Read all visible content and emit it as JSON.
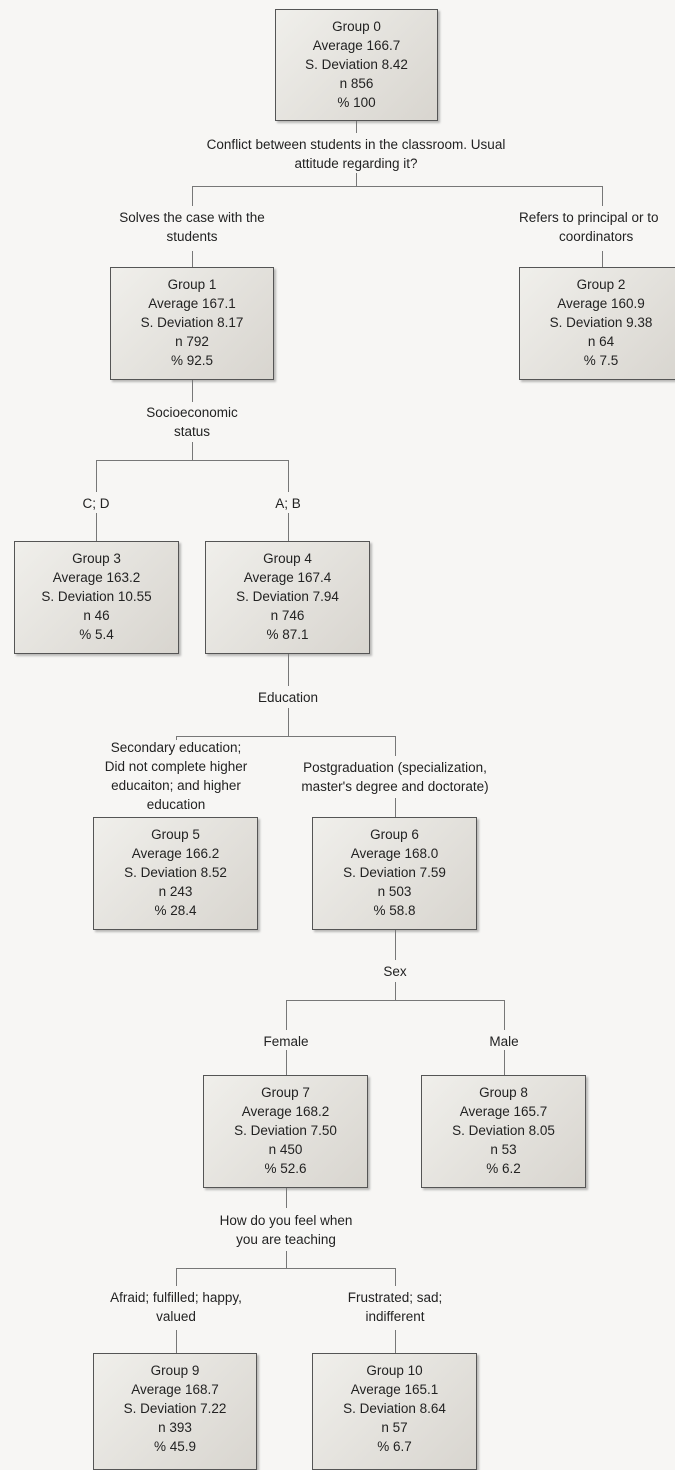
{
  "nodes": [
    {
      "group": "Group  0",
      "average": "Average  166.7",
      "sd": "S. Deviation  8.42",
      "n": "n  856",
      "pct": "% 100"
    },
    {
      "group": "Group  1",
      "average": "Average  167.1",
      "sd": "S. Deviation  8.17",
      "n": "n  792",
      "pct": "% 92.5"
    },
    {
      "group": "Group  2",
      "average": "Average  160.9",
      "sd": "S. Deviation  9.38",
      "n": "n  64",
      "pct": "% 7.5"
    },
    {
      "group": "Group  3",
      "average": "Average  163.2",
      "sd": "S. Deviation  10.55",
      "n": "n  46",
      "pct": "% 5.4"
    },
    {
      "group": "Group  4",
      "average": "Average  167.4",
      "sd": "S. Deviation  7.94",
      "n": "n  746",
      "pct": "% 87.1"
    },
    {
      "group": "Group  5",
      "average": "Average  166.2",
      "sd": "S. Deviation  8.52",
      "n": "n  243",
      "pct": "% 28.4"
    },
    {
      "group": "Group  6",
      "average": "Average  168.0",
      "sd": "S. Deviation  7.59",
      "n": "n  503",
      "pct": "% 58.8"
    },
    {
      "group": "Group  7",
      "average": "Average  168.2",
      "sd": "S. Deviation  7.50",
      "n": "n  450",
      "pct": "% 52.6"
    },
    {
      "group": "Group  8",
      "average": "Average  165.7",
      "sd": "S. Deviation  8.05",
      "n": "n  53",
      "pct": "% 6.2"
    },
    {
      "group": "Group  9",
      "average": "Average  168.7",
      "sd": "S. Deviation  7.22",
      "n": "n  393",
      "pct": "% 45.9"
    },
    {
      "group": "Group  10",
      "average": "Average  165.1",
      "sd": "S. Deviation  8.64",
      "n": "n  57",
      "pct": "% 6.7"
    }
  ],
  "splits": [
    {
      "variable": [
        "Conflict between students in the classroom. Usual",
        "attitude regarding it?"
      ],
      "branches": [
        [
          "Solves the case with the",
          "students"
        ],
        [
          "Refers to principal or to",
          "coordinators"
        ]
      ]
    },
    {
      "variable": [
        "Socioeconomic",
        "status"
      ],
      "branches": [
        [
          "C; D"
        ],
        [
          "A; B"
        ]
      ]
    },
    {
      "variable": [
        "Education"
      ],
      "branches": [
        [
          "Secondary education;",
          "Did not complete higher",
          "educaiton; and higher",
          "education"
        ],
        [
          "Postgraduation (specialization,",
          "master's degree and doctorate)"
        ]
      ]
    },
    {
      "variable": [
        "Sex"
      ],
      "branches": [
        [
          "Female"
        ],
        [
          "Male"
        ]
      ]
    },
    {
      "variable": [
        "How do you feel when",
        "you are teaching"
      ],
      "branches": [
        [
          "Afraid; fulfilled; happy,",
          "valued"
        ],
        [
          "Frustrated; sad;",
          "indifferent"
        ]
      ]
    }
  ]
}
